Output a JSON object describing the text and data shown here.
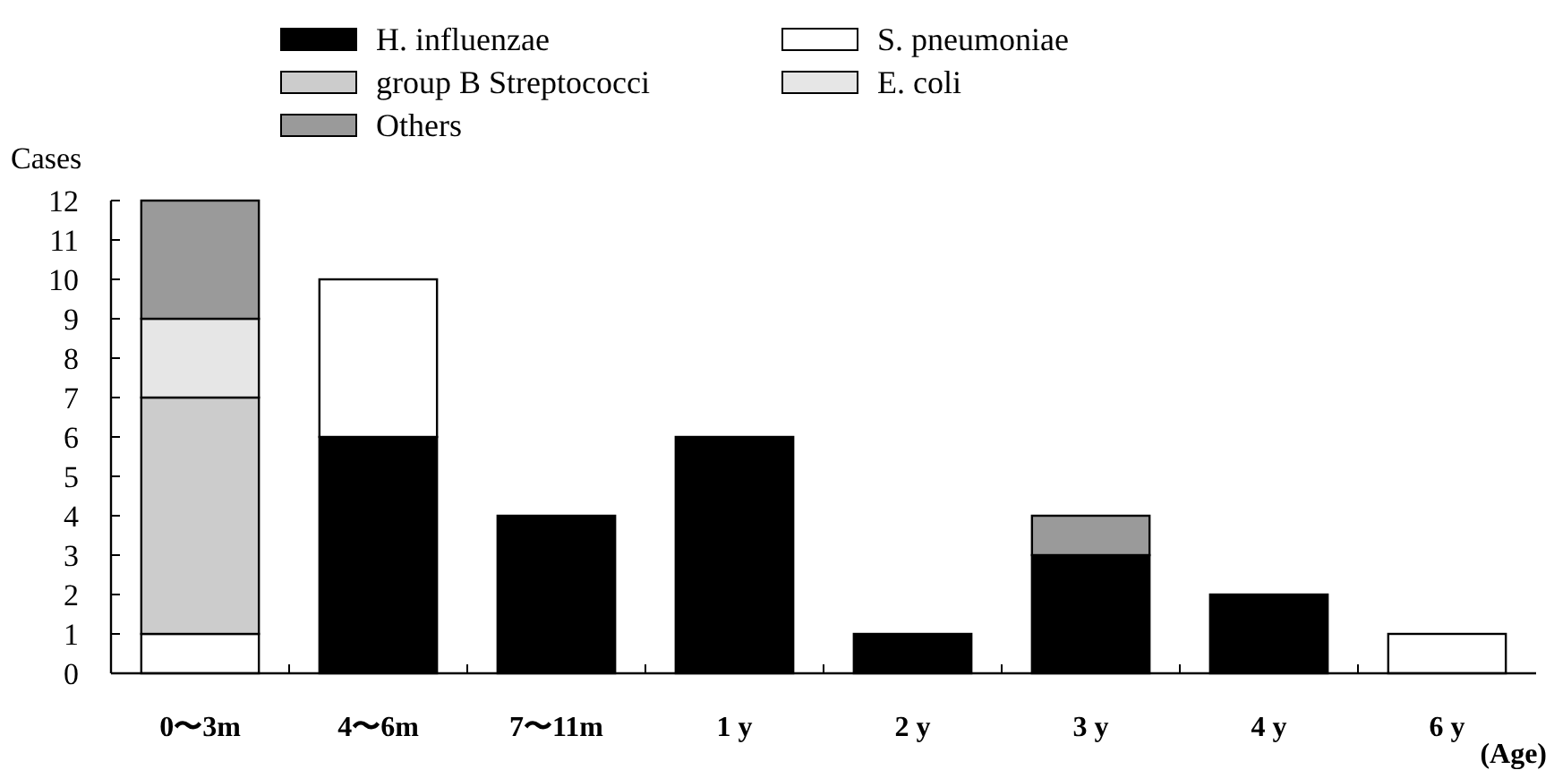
{
  "chart_data": {
    "type": "bar",
    "stacked": true,
    "categories": [
      "0〜3m",
      "4〜6m",
      "7〜11m",
      "1 y",
      "2 y",
      "3 y",
      "4 y",
      "6 y"
    ],
    "series": [
      {
        "name": "H. influenzae",
        "color": "#000000",
        "values": [
          0,
          6,
          4,
          6,
          1,
          3,
          2,
          0
        ]
      },
      {
        "name": "S. pneumoniae",
        "color": "#ffffff",
        "values": [
          1,
          4,
          0,
          0,
          0,
          0,
          0,
          1
        ]
      },
      {
        "name": "group B Streptococci",
        "color": "#cccccc",
        "values": [
          6,
          0,
          0,
          0,
          0,
          0,
          0,
          0
        ]
      },
      {
        "name": "E. coli",
        "color": "#e6e6e6",
        "values": [
          2,
          0,
          0,
          0,
          0,
          0,
          0,
          0
        ]
      },
      {
        "name": "Others",
        "color": "#9a9a9a",
        "values": [
          3,
          0,
          0,
          0,
          0,
          1,
          0,
          0
        ]
      }
    ],
    "ylabel": "Cases",
    "xlabel": "(Age)",
    "ylim": [
      0,
      12
    ],
    "yticks": [
      0,
      1,
      2,
      3,
      4,
      5,
      6,
      7,
      8,
      9,
      10,
      11,
      12
    ],
    "legend": "top",
    "grid": false
  }
}
